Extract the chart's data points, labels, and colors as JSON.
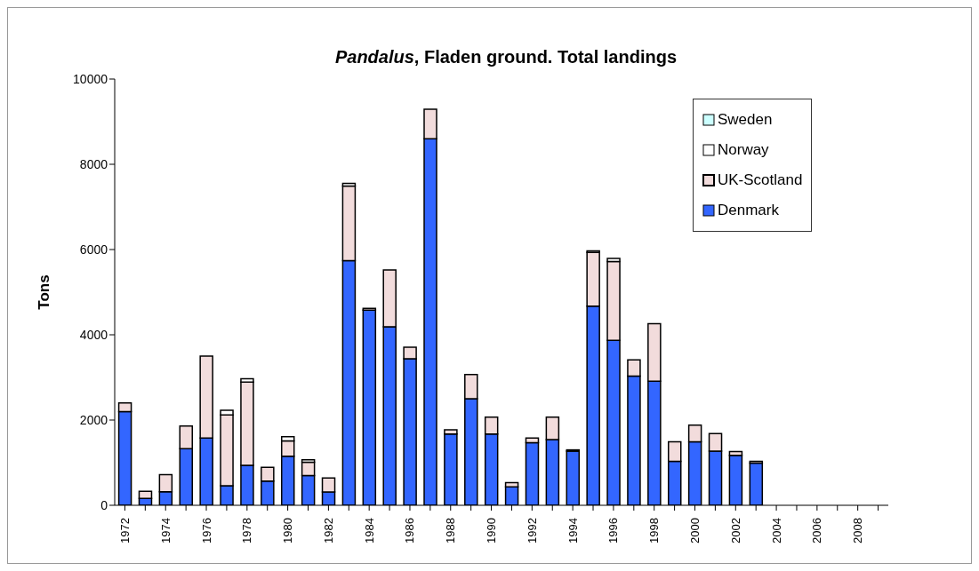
{
  "chart_data": {
    "type": "bar",
    "title": "Pandalus, Fladen ground. Total landings",
    "ylabel": "Tons",
    "categories": [
      "1972",
      null,
      "1974",
      null,
      "1976",
      null,
      "1978",
      null,
      "1980",
      null,
      "1982",
      null,
      "1984",
      null,
      "1986",
      null,
      "1988",
      null,
      "1990",
      null,
      "1992",
      null,
      "1994",
      null,
      "1996",
      null,
      "1998",
      null,
      "2000",
      null,
      "2002",
      null,
      "2004",
      null,
      "2006",
      null,
      "2008",
      null
    ],
    "stacked": true,
    "ylim": [
      0,
      10000
    ],
    "yticks": [
      0,
      2000,
      4000,
      6000,
      8000,
      10000
    ],
    "grid": false,
    "legend": "top right",
    "series": [
      {
        "name": "Denmark",
        "color": "#3366ff",
        "values": [
          2200,
          160,
          320,
          1330,
          1580,
          460,
          940,
          570,
          1150,
          700,
          310,
          5740,
          4580,
          4190,
          3440,
          8600,
          1670,
          2500,
          1670,
          430,
          1470,
          1540,
          1270,
          4670,
          3870,
          3030,
          2910,
          1030,
          1490,
          1270,
          1170,
          990,
          null,
          null,
          null,
          null,
          null,
          null
        ]
      },
      {
        "name": "UK-Scotland",
        "color": "#f2dcdc",
        "values": [
          200,
          170,
          400,
          530,
          1920,
          1660,
          1950,
          320,
          360,
          310,
          330,
          1750,
          40,
          1330,
          270,
          690,
          100,
          570,
          400,
          100,
          110,
          530,
          30,
          1260,
          1850,
          380,
          1350,
          460,
          390,
          410,
          90,
          40,
          null,
          null,
          null,
          null,
          null,
          null
        ]
      },
      {
        "name": "Norway",
        "color": "#ffffff",
        "values": [
          null,
          null,
          null,
          null,
          null,
          110,
          80,
          null,
          100,
          60,
          null,
          60,
          null,
          null,
          null,
          null,
          null,
          null,
          null,
          null,
          null,
          null,
          null,
          40,
          70,
          null,
          null,
          null,
          null,
          null,
          null,
          null,
          null,
          null,
          null,
          null,
          null,
          null
        ]
      },
      {
        "name": "Sweden",
        "color": "#ccffff",
        "values": [
          null,
          null,
          null,
          null,
          null,
          null,
          null,
          null,
          null,
          null,
          null,
          null,
          null,
          null,
          null,
          null,
          null,
          null,
          null,
          null,
          null,
          null,
          null,
          null,
          null,
          null,
          null,
          null,
          null,
          null,
          null,
          null,
          null,
          null,
          null,
          null,
          null,
          null
        ]
      }
    ]
  }
}
